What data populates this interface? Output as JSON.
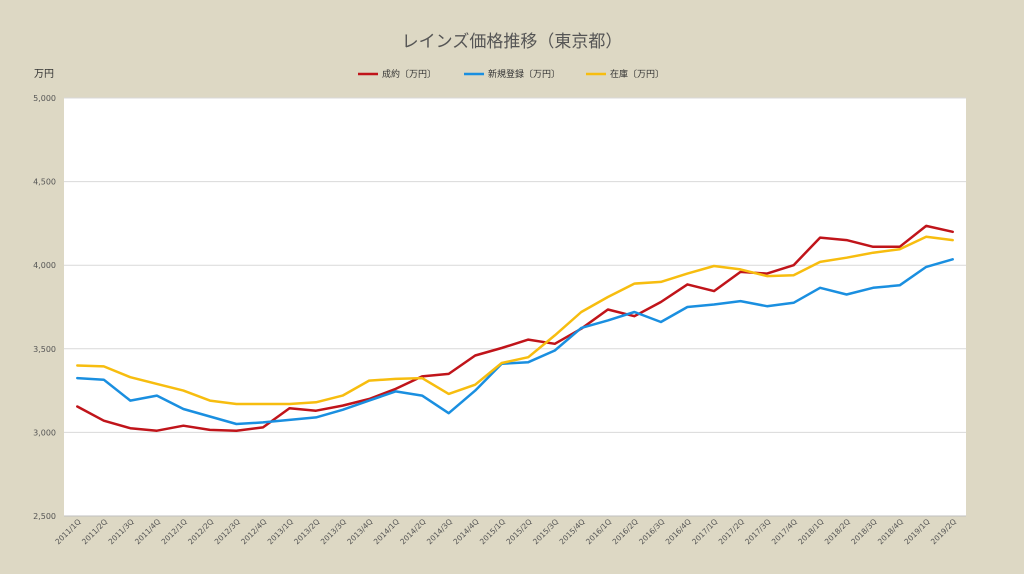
{
  "chart_data": {
    "type": "line",
    "title": "レインズ価格推移（東京都）",
    "ylabel": "万円",
    "ylim": [
      2500,
      5000
    ],
    "yticks": [
      "2,500",
      "3,000",
      "3,500",
      "4,000",
      "4,500",
      "5,000"
    ],
    "ytick_values": [
      2500,
      3000,
      3500,
      4000,
      4500,
      5000
    ],
    "grid": true,
    "legend_position": "top",
    "categories": [
      "2011/1Q",
      "2011/2Q",
      "2011/3Q",
      "2011/4Q",
      "2012/1Q",
      "2012/2Q",
      "2012/3Q",
      "2012/4Q",
      "2013/1Q",
      "2013/2Q",
      "2013/3Q",
      "2013/4Q",
      "2014/1Q",
      "2014/2Q",
      "2014/3Q",
      "2014/4Q",
      "2015/1Q",
      "2015/2Q",
      "2015/3Q",
      "2015/4Q",
      "2016/1Q",
      "2016/2Q",
      "2016/3Q",
      "2016/4Q",
      "2017/1Q",
      "2017/2Q",
      "2017/3Q",
      "2017/4Q",
      "2018/1Q",
      "2018/2Q",
      "2018/3Q",
      "2018/4Q",
      "2019/1Q",
      "2019/2Q"
    ],
    "series": [
      {
        "name": "成約〔万円〕",
        "color": "#c0141a",
        "values": [
          3155,
          3070,
          3025,
          3010,
          3040,
          3015,
          3010,
          3030,
          3145,
          3130,
          3160,
          3200,
          3260,
          3335,
          3350,
          3460,
          3505,
          3555,
          3530,
          3620,
          3735,
          3695,
          3780,
          3885,
          3845,
          3960,
          3950,
          4000,
          4165,
          4150,
          4110,
          4110,
          4235,
          4200
        ]
      },
      {
        "name": "新規登録〔万円〕",
        "color": "#1a8fe0",
        "values": [
          3325,
          3315,
          3190,
          3220,
          3140,
          3095,
          3050,
          3060,
          3075,
          3090,
          3135,
          3190,
          3245,
          3220,
          3115,
          3250,
          3410,
          3420,
          3490,
          3625,
          3670,
          3720,
          3660,
          3750,
          3765,
          3785,
          3755,
          3775,
          3865,
          3825,
          3865,
          3880,
          3990,
          4035
        ]
      },
      {
        "name": "在庫〔万円〕",
        "color": "#f7bd0f",
        "values": [
          3400,
          3395,
          3330,
          3290,
          3250,
          3190,
          3170,
          3170,
          3170,
          3180,
          3220,
          3310,
          3320,
          3325,
          3230,
          3285,
          3415,
          3450,
          3580,
          3720,
          3810,
          3890,
          3900,
          3950,
          3995,
          3975,
          3935,
          3940,
          4020,
          4045,
          4075,
          4095,
          4170,
          4150
        ]
      }
    ]
  }
}
